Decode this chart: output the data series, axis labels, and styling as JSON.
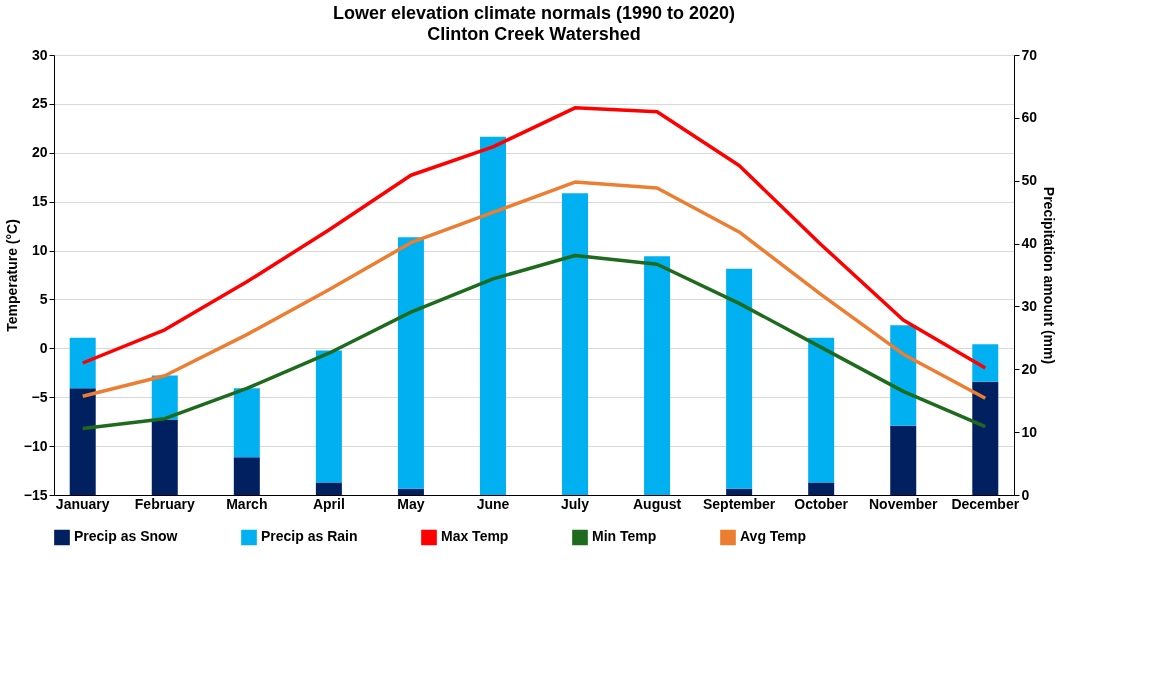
{
  "chart_data": {
    "type": "bar",
    "title": "Lower elevation climate normals (1990 to 2020)",
    "subtitle": "Clinton Creek Watershed",
    "ylabel": "Temperature (°C)",
    "y2label": "Precipitation amount (mm)",
    "categories": [
      "January",
      "February",
      "March",
      "April",
      "May",
      "June",
      "July",
      "August",
      "September",
      "October",
      "November",
      "December"
    ],
    "stacked": true,
    "series": [
      {
        "name": "Precip as Snow",
        "axis": "y2",
        "color": "#002060",
        "values": [
          17,
          12,
          6,
          2,
          1,
          0,
          0,
          0,
          1,
          2,
          11,
          18
        ]
      },
      {
        "name": "Precip as Rain",
        "axis": "y2",
        "color": "#00b0f0",
        "values": [
          8,
          7,
          11,
          21,
          40,
          57,
          48,
          38,
          35,
          23,
          16,
          6
        ]
      },
      {
        "name": "Max Temp",
        "type": "line",
        "axis": "y",
        "color": "#ff0000",
        "values": [
          -1.5,
          1.9,
          6.8,
          12.1,
          17.7,
          20.6,
          24.6,
          24.2,
          18.7,
          10.6,
          2.9,
          -2.0
        ]
      },
      {
        "name": "Min Temp",
        "type": "line",
        "axis": "y",
        "color": "#1e6b1e",
        "values": [
          -8.2,
          -7.2,
          -4.1,
          -0.5,
          3.7,
          7.1,
          9.5,
          8.6,
          4.6,
          0.1,
          -4.4,
          -8.0
        ]
      },
      {
        "name": "Avg Temp",
        "type": "line",
        "axis": "y",
        "color": "#ed7d31",
        "values": [
          -4.9,
          -2.8,
          1.4,
          6.0,
          10.8,
          13.9,
          17.0,
          16.4,
          11.9,
          5.5,
          -0.6,
          -5.1
        ]
      }
    ],
    "ylim": [
      -15,
      30
    ],
    "yticks": [
      -15,
      -10,
      -5,
      0,
      5,
      10,
      15,
      20,
      25,
      30
    ],
    "y2lim": [
      0,
      70
    ],
    "y2ticks": [
      0,
      10,
      20,
      30,
      40,
      50,
      60,
      70
    ],
    "grid": "y",
    "legend": "bottom",
    "line_style": "solid",
    "marker": "none"
  }
}
